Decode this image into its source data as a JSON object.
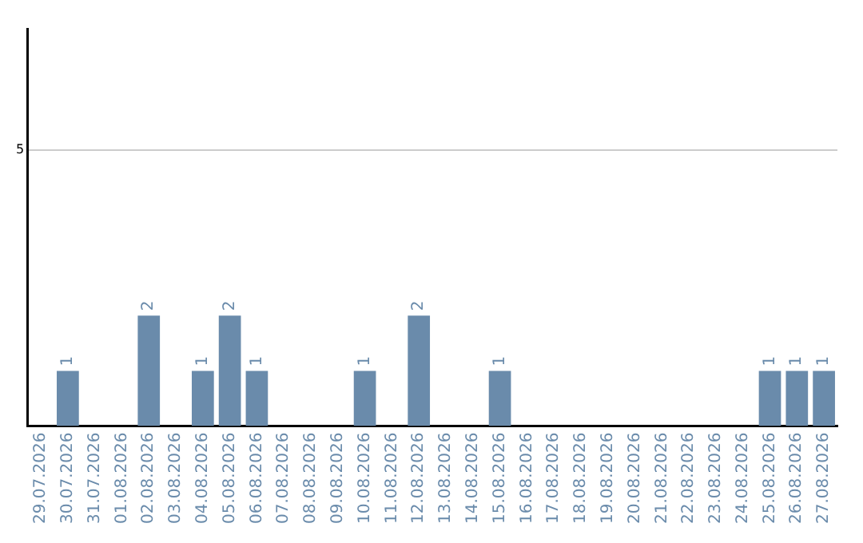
{
  "chart_data": {
    "type": "bar",
    "categories": [
      "29.07.2026",
      "30.07.2026",
      "31.07.2026",
      "01.08.2026",
      "02.08.2026",
      "03.08.2026",
      "04.08.2026",
      "05.08.2026",
      "06.08.2026",
      "07.08.2026",
      "08.08.2026",
      "09.08.2026",
      "10.08.2026",
      "11.08.2026",
      "12.08.2026",
      "13.08.2026",
      "14.08.2026",
      "15.08.2026",
      "16.08.2026",
      "17.08.2026",
      "18.08.2026",
      "19.08.2026",
      "20.08.2026",
      "21.08.2026",
      "22.08.2026",
      "23.08.2026",
      "24.08.2026",
      "25.08.2026",
      "26.08.2026",
      "27.08.2026"
    ],
    "values": [
      0,
      1,
      0,
      0,
      2,
      0,
      1,
      2,
      1,
      0,
      0,
      0,
      1,
      0,
      2,
      0,
      0,
      1,
      0,
      0,
      0,
      0,
      0,
      0,
      0,
      0,
      0,
      1,
      1,
      1
    ],
    "color": "#6a8bab",
    "value_labels": [
      null,
      "1",
      null,
      null,
      "2",
      null,
      "1",
      "2",
      "1",
      null,
      null,
      null,
      "1",
      null,
      "2",
      null,
      null,
      "1",
      null,
      null,
      null,
      null,
      null,
      null,
      null,
      null,
      null,
      "1",
      "1",
      "1"
    ],
    "ylim": [
      0,
      7.2
    ],
    "yticks": [
      5
    ],
    "grid": "y",
    "legend": false
  }
}
